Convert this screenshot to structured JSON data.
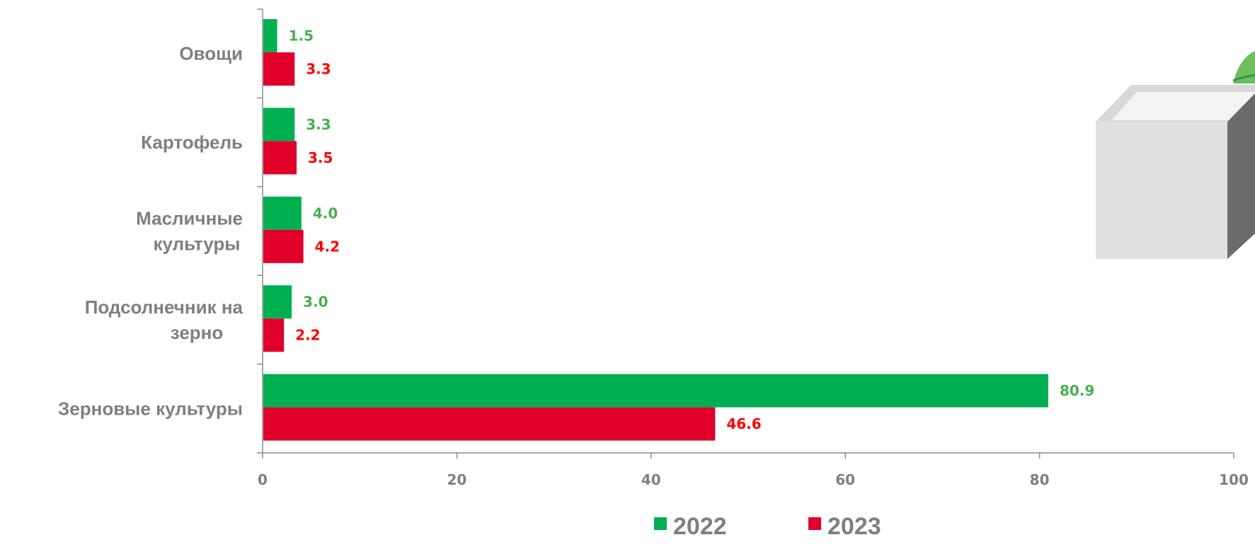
{
  "chart_data": {
    "type": "bar",
    "orientation": "horizontal",
    "categories": [
      [
        "Овощи"
      ],
      [
        "Картофель"
      ],
      [
        "Масличные",
        "культуры"
      ],
      [
        "Подсолнечник на",
        "зерно"
      ],
      [
        "Зерновые  культуры"
      ]
    ],
    "series": [
      {
        "name": "2022",
        "color": "#00b050",
        "label_color": "#4caf50",
        "values": [
          1.5,
          3.3,
          4.0,
          3.0,
          80.9
        ]
      },
      {
        "name": "2023",
        "color": "#e0002a",
        "label_color": "#ff0000",
        "values": [
          3.3,
          3.5,
          4.2,
          2.2,
          46.6
        ]
      }
    ],
    "value_labels": [
      [
        "1.5",
        "3.3",
        "4.0",
        "3.0",
        "80.9"
      ],
      [
        "3.3",
        "3.5",
        "4.2",
        "2.2",
        "46.6"
      ]
    ],
    "xlim": [
      0,
      100
    ],
    "xticks": [
      0,
      20,
      40,
      60,
      80,
      100
    ],
    "title": "",
    "xlabel": "",
    "ylabel": "",
    "grid": false,
    "legend_position": "bottom-center",
    "decoration": "box-illustration"
  }
}
